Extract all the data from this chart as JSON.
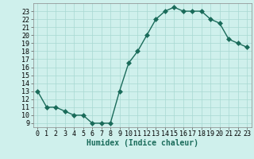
{
  "x": [
    0,
    1,
    2,
    3,
    4,
    5,
    6,
    7,
    8,
    9,
    10,
    11,
    12,
    13,
    14,
    15,
    16,
    17,
    18,
    19,
    20,
    21,
    22,
    23
  ],
  "y": [
    13,
    11,
    11,
    10.5,
    10,
    10,
    9,
    9,
    9,
    13,
    16.5,
    18,
    20,
    22,
    23,
    23.5,
    23,
    23,
    23,
    22,
    21.5,
    19.5,
    19,
    18.5
  ],
  "line_color": "#1a6b5a",
  "marker_color": "#1a6b5a",
  "bg_color": "#cff0ec",
  "grid_color": "#a8d8d2",
  "xlabel": "Humidex (Indice chaleur)",
  "xlim": [
    -0.5,
    23.5
  ],
  "ylim": [
    8.5,
    24.0
  ],
  "yticks": [
    9,
    10,
    11,
    12,
    13,
    14,
    15,
    16,
    17,
    18,
    19,
    20,
    21,
    22,
    23
  ],
  "xticks": [
    0,
    1,
    2,
    3,
    4,
    5,
    6,
    7,
    8,
    9,
    10,
    11,
    12,
    13,
    14,
    15,
    16,
    17,
    18,
    19,
    20,
    21,
    22,
    23
  ],
  "xlabel_fontsize": 7,
  "tick_fontsize": 6,
  "line_width": 1.0,
  "marker_size": 3.0
}
